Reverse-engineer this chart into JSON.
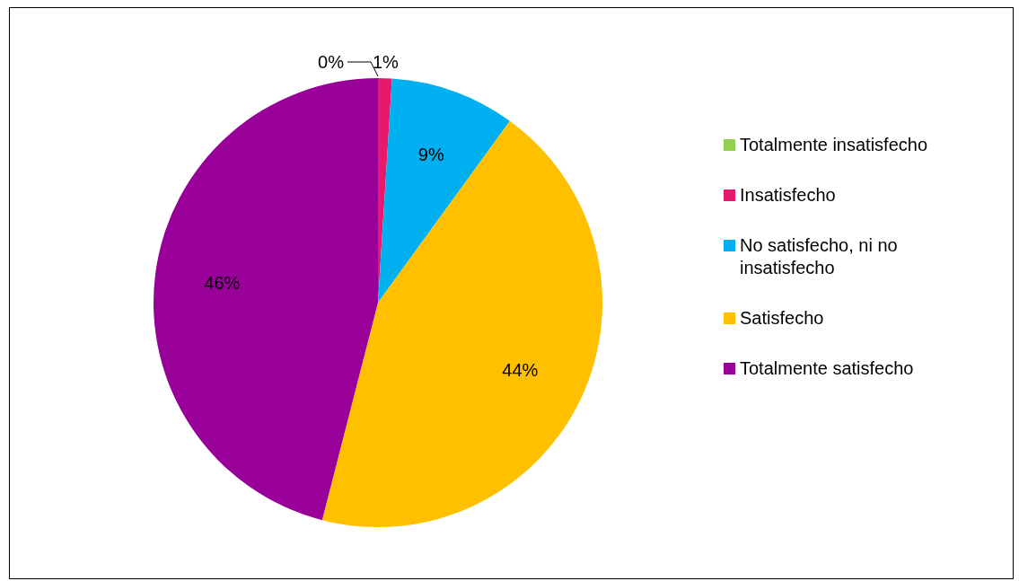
{
  "chart_data": {
    "type": "pie",
    "categories": [
      "Totalmente insatisfecho",
      "Insatisfecho",
      "No satisfecho, ni no insatisfecho",
      "Satisfecho",
      "Totalmente satisfecho"
    ],
    "values": [
      0,
      1,
      9,
      44,
      46
    ],
    "colors": [
      "#92d050",
      "#e8186d",
      "#00b0f0",
      "#ffc000",
      "#990099"
    ],
    "value_labels": [
      "0%",
      "1%",
      "9%",
      "44%",
      "46%"
    ],
    "legend": "right"
  }
}
